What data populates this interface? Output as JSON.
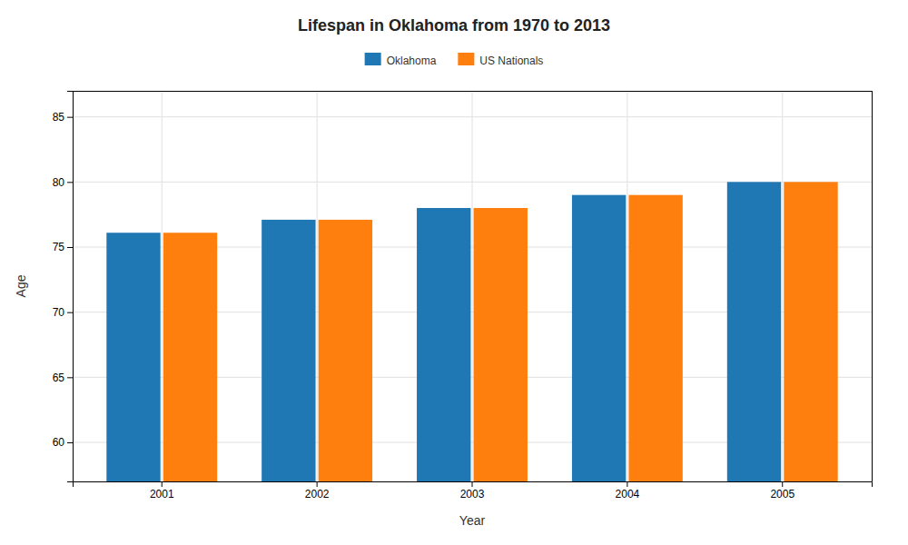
{
  "chart_data": {
    "type": "bar",
    "title": "Lifespan in Oklahoma from 1970 to 2013",
    "x_label": "Year",
    "y_label": "Age",
    "categories": [
      "2001",
      "2002",
      "2003",
      "2004",
      "2005"
    ],
    "series": [
      {
        "name": "Oklahoma",
        "values": [
          76.1,
          77.1,
          78.0,
          79.0,
          80.0
        ]
      },
      {
        "name": "US Nationals",
        "values": [
          76.1,
          77.1,
          78.0,
          79.0,
          80.0
        ]
      }
    ],
    "ylim": [
      57,
      87
    ],
    "yticks": [
      60,
      65,
      70,
      75,
      80,
      85
    ],
    "grid": true,
    "legend": "top"
  }
}
